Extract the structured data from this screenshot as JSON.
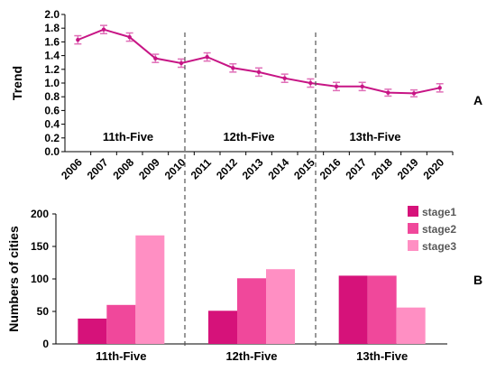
{
  "chart_data": [
    {
      "type": "line",
      "panel_label": "A",
      "ylabel": "Trend",
      "ylim": [
        0.0,
        2.0
      ],
      "yticks": [
        "0.0",
        "0.2",
        "0.4",
        "0.6",
        "0.8",
        "1.0",
        "1.2",
        "1.4",
        "1.6",
        "1.8",
        "2.0"
      ],
      "x": [
        "2006",
        "2007",
        "2008",
        "2009",
        "2010",
        "2011",
        "2012",
        "2013",
        "2014",
        "2015",
        "2016",
        "2017",
        "2018",
        "2019",
        "2020"
      ],
      "series": [
        {
          "values": [
            1.63,
            1.78,
            1.67,
            1.36,
            1.29,
            1.38,
            1.22,
            1.16,
            1.07,
            1.0,
            0.95,
            0.95,
            0.86,
            0.85,
            0.93
          ],
          "error": [
            0.06,
            0.06,
            0.06,
            0.06,
            0.06,
            0.06,
            0.06,
            0.06,
            0.06,
            0.06,
            0.06,
            0.06,
            0.05,
            0.05,
            0.06
          ]
        }
      ],
      "period_labels": [
        "11th-Five",
        "12th-Five",
        "13th-Five"
      ],
      "line_color": "#c71585",
      "grid": false
    },
    {
      "type": "bar",
      "panel_label": "B",
      "ylabel": "Numbers of cities",
      "ylim": [
        0,
        200
      ],
      "yticks": [
        "0",
        "50",
        "100",
        "150",
        "200"
      ],
      "categories": [
        "11th-Five",
        "12th-Five",
        "13th-Five"
      ],
      "series": [
        {
          "name": "stage1",
          "values": [
            39,
            51,
            105
          ],
          "color": "#d6127a"
        },
        {
          "name": "stage2",
          "values": [
            60,
            101,
            105
          ],
          "color": "#f0489b"
        },
        {
          "name": "stage3",
          "values": [
            167,
            115,
            56
          ],
          "color": "#ff8fc3"
        }
      ],
      "legend_position": "top-right",
      "grid": false
    }
  ]
}
